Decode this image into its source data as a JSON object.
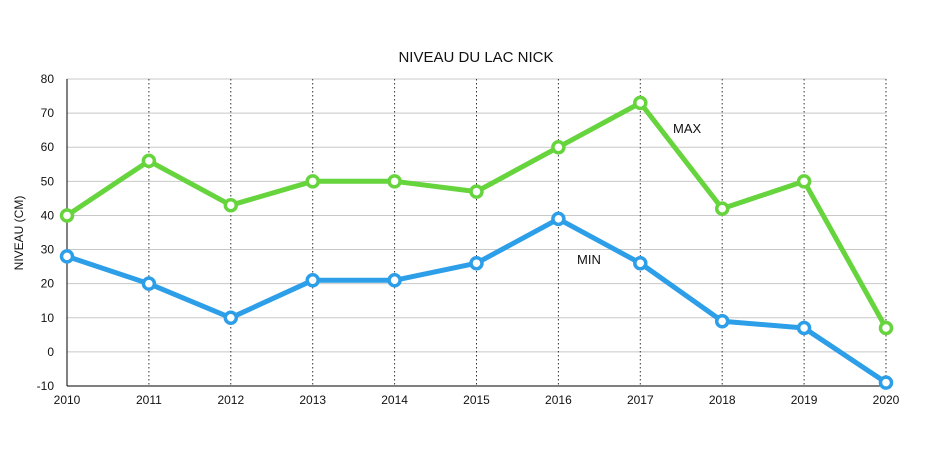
{
  "chart_data": {
    "type": "line",
    "title": "NIVEAU DU LAC NICK",
    "xlabel": "",
    "ylabel": "NIVEAU (CM)",
    "categories": [
      "2010",
      "2011",
      "2012",
      "2013",
      "2014",
      "2015",
      "2016",
      "2017",
      "2018",
      "2019",
      "2020"
    ],
    "y_ticks": [
      "80",
      "70",
      "60",
      "50",
      "40",
      "30",
      "20",
      "10",
      "0",
      "-10"
    ],
    "ylim": [
      -10,
      80
    ],
    "grid": "horizontal solid, vertical dotted",
    "series": [
      {
        "name": "MAX",
        "color": "#66d43c",
        "values": [
          40,
          56,
          43,
          50,
          50,
          47,
          60,
          73,
          42,
          50,
          7
        ]
      },
      {
        "name": "MIN",
        "color": "#2d9ee8",
        "values": [
          28,
          20,
          10,
          21,
          21,
          26,
          39,
          26,
          9,
          7,
          -9
        ]
      }
    ]
  }
}
